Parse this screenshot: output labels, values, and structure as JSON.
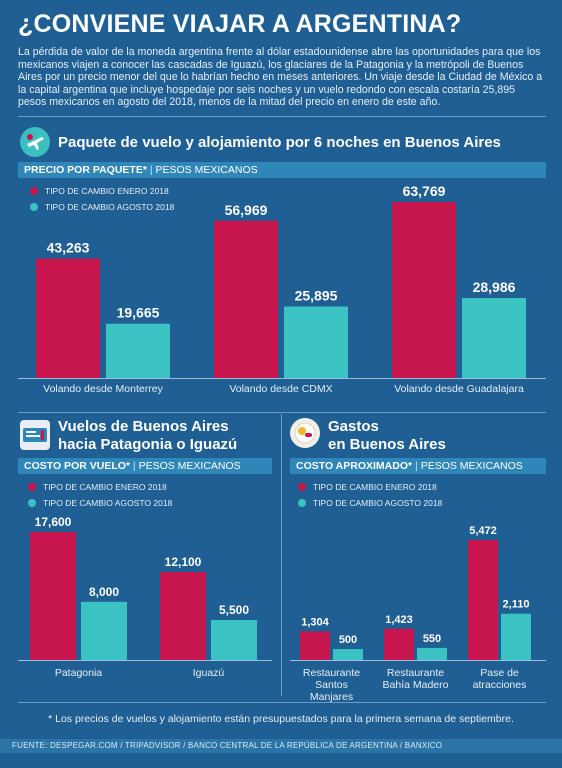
{
  "title": "¿CONVIENE VIAJAR A ARGENTINA?",
  "intro": "La pérdida de valor de la moneda argentina frente al dólar estadounidense abre las oportunidades para que los mexicanos viajen a conocer las cascadas de Iguazú, los glaciares de la Patagonia y la metrópoli de Buenos Aires por un precio menor del que lo habrían hecho en meses anteriores. Un viaje desde la Ciudad de México a la capital argentina que incluye hospedaje por seis noches y un vuelo redondo con escala costaría 25,895 pesos mexicanos en agosto del 2018, menos de la mitad del precio en enero de este año.",
  "colors": {
    "january": "#c8174e",
    "august": "#3bc3c4",
    "background": "#1f5f94",
    "band": "#2f86b8"
  },
  "legend": {
    "january": "TIPO DE CAMBIO ENERO 2018",
    "august": "TIPO DE CAMBIO AGOSTO 2018"
  },
  "sections": {
    "package": {
      "icon": "airplane-globe-icon",
      "title": "Paquete de vuelo y alojamiento por 6 noches en Buenos Aires",
      "band_bold": "PRECIO POR PAQUETE*",
      "band_rest": "PESOS MEXICANOS"
    },
    "flights": {
      "icon": "ticket-icon",
      "title_line1": "Vuelos de Buenos Aires",
      "title_line2": "hacia Patagonia o Iguazú",
      "band_bold": "COSTO POR VUELO*",
      "band_rest": "PESOS MEXICANOS"
    },
    "expenses": {
      "icon": "food-plate-icon",
      "title_line1": "Gastos",
      "title_line2": "en Buenos Aires",
      "band_bold": "COSTO APROXIMADO*",
      "band_rest": "PESOS MEXICANOS"
    }
  },
  "chart_data": [
    {
      "type": "bar",
      "title": "Paquete de vuelo y alojamiento por 6 noches en Buenos Aires",
      "ylabel": "PESOS MEXICANOS",
      "categories": [
        "Volando desde Monterrey",
        "Volando desde  CDMX",
        "Volando desde  Guadalajara"
      ],
      "series": [
        {
          "name": "TIPO DE CAMBIO ENERO 2018",
          "values": [
            43263,
            56969,
            63769
          ],
          "labels": [
            "43,263",
            "56,969",
            "63,769"
          ]
        },
        {
          "name": "TIPO DE CAMBIO AGOSTO 2018",
          "values": [
            19665,
            25895,
            28986
          ],
          "labels": [
            "19,665",
            "25,895",
            "28,986"
          ]
        }
      ]
    },
    {
      "type": "bar",
      "title": "Vuelos de Buenos Aires hacia Patagonia o Iguazú",
      "ylabel": "PESOS MEXICANOS",
      "categories": [
        "Patagonia",
        "Iguazú"
      ],
      "series": [
        {
          "name": "TIPO DE CAMBIO ENERO 2018",
          "values": [
            17600,
            12100
          ],
          "labels": [
            "17,600",
            "12,100"
          ]
        },
        {
          "name": "TIPO DE CAMBIO AGOSTO 2018",
          "values": [
            8000,
            5500
          ],
          "labels": [
            "8,000",
            "5,500"
          ]
        }
      ]
    },
    {
      "type": "bar",
      "title": "Gastos en Buenos Aires",
      "ylabel": "PESOS MEXICANOS",
      "categories": [
        [
          "Restaurante",
          "Santos",
          "Manjares"
        ],
        [
          "Restaurante",
          "Bahía Madero"
        ],
        [
          "Pase de",
          "atracciones"
        ]
      ],
      "series": [
        {
          "name": "TIPO DE CAMBIO ENERO 2018",
          "values": [
            1304,
            1423,
            5472
          ],
          "labels": [
            "1,304",
            "1,423",
            "5,472"
          ]
        },
        {
          "name": "TIPO DE CAMBIO AGOSTO 2018",
          "values": [
            500,
            550,
            2110
          ],
          "labels": [
            "500",
            "550",
            "2,110"
          ]
        }
      ]
    }
  ],
  "footnote": "* Los precios de vuelos y alojamiento están presupuestados para la primera semana de septiembre.",
  "source": "FUENTE: DESPEGAR.COM / TRIPADVISOR / BANCO CENTRAL DE LA REPÚBLICA DE ARGENTINA / BANXICO"
}
